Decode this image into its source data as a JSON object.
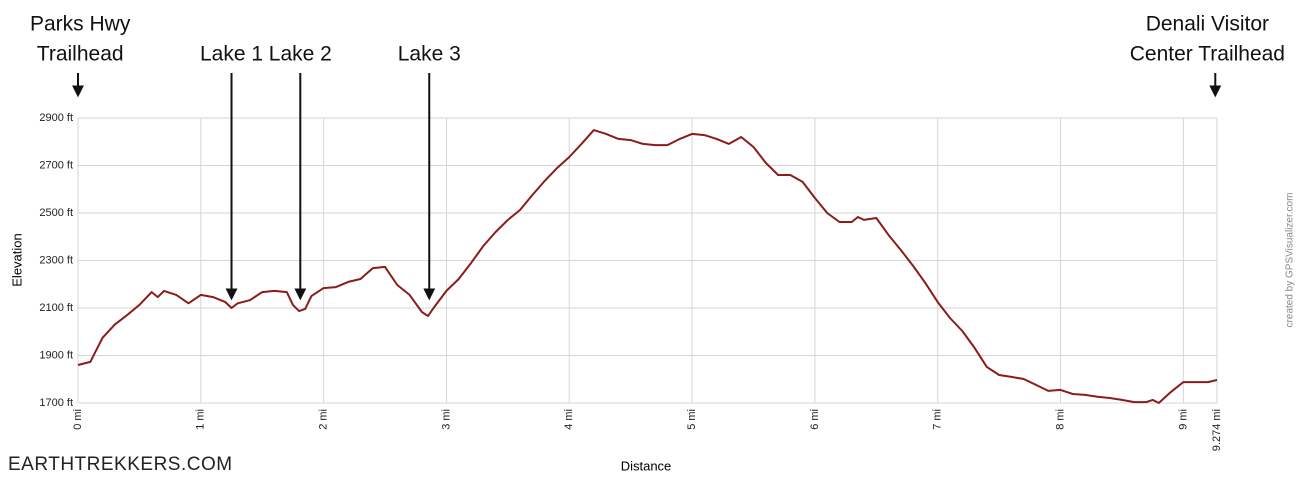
{
  "chart_data": {
    "type": "line",
    "y_label": "Elevation",
    "x_label": "Distance",
    "watermark": "EARTHTREKKERS.COM",
    "credit": "created by GPSVisualizer.com",
    "color": "#8b1c1c",
    "grid": true,
    "xlim": [
      0,
      9.274
    ],
    "ylim": [
      1700,
      2900
    ],
    "xticks": [
      {
        "value": 0,
        "label": "0 mi"
      },
      {
        "value": 1,
        "label": "1 mi"
      },
      {
        "value": 2,
        "label": "2 mi"
      },
      {
        "value": 3,
        "label": "3 mi"
      },
      {
        "value": 4,
        "label": "4 mi"
      },
      {
        "value": 5,
        "label": "5 mi"
      },
      {
        "value": 6,
        "label": "6 mi"
      },
      {
        "value": 7,
        "label": "7 mi"
      },
      {
        "value": 8,
        "label": "8 mi"
      },
      {
        "value": 9,
        "label": "9 mi"
      },
      {
        "value": 9.274,
        "label": "9.274 mi"
      }
    ],
    "yticks": [
      {
        "value": 1700,
        "label": "1700 ft"
      },
      {
        "value": 1900,
        "label": "1900 ft"
      },
      {
        "value": 2100,
        "label": "2100 ft"
      },
      {
        "value": 2300,
        "label": "2300 ft"
      },
      {
        "value": 2500,
        "label": "2500 ft"
      },
      {
        "value": 2700,
        "label": "2700 ft"
      },
      {
        "value": 2900,
        "label": "2900 ft"
      }
    ],
    "annotations": [
      {
        "text": [
          "Parks Hwy",
          "Trailhead"
        ],
        "x": 0
      },
      {
        "text": [
          "Lake 1"
        ],
        "x": 1.25
      },
      {
        "text": [
          "Lake 2"
        ],
        "x": 1.81
      },
      {
        "text": [
          "Lake 3"
        ],
        "x": 2.86
      },
      {
        "text": [
          "Denali Visitor",
          "Center Trailhead"
        ],
        "x": 9.26
      }
    ],
    "x": [
      0,
      0.1,
      0.2,
      0.3,
      0.4,
      0.5,
      0.6,
      0.65,
      0.7,
      0.8,
      0.9,
      1.0,
      1.1,
      1.2,
      1.25,
      1.3,
      1.4,
      1.5,
      1.6,
      1.7,
      1.75,
      1.8,
      1.85,
      1.9,
      2.0,
      2.1,
      2.2,
      2.3,
      2.4,
      2.5,
      2.6,
      2.7,
      2.8,
      2.85,
      2.9,
      3.0,
      3.1,
      3.2,
      3.3,
      3.4,
      3.5,
      3.6,
      3.7,
      3.8,
      3.9,
      4.0,
      4.1,
      4.2,
      4.3,
      4.4,
      4.5,
      4.6,
      4.7,
      4.8,
      4.9,
      5.0,
      5.1,
      5.2,
      5.3,
      5.4,
      5.5,
      5.6,
      5.7,
      5.8,
      5.9,
      6.0,
      6.1,
      6.2,
      6.3,
      6.35,
      6.4,
      6.5,
      6.6,
      6.7,
      6.8,
      6.9,
      7.0,
      7.1,
      7.2,
      7.3,
      7.4,
      7.5,
      7.6,
      7.7,
      7.8,
      7.9,
      8.0,
      8.1,
      8.2,
      8.3,
      8.4,
      8.5,
      8.6,
      8.7,
      8.75,
      8.8,
      8.9,
      9.0,
      9.1,
      9.2,
      9.274
    ],
    "values": [
      1860,
      1873,
      1975,
      2030,
      2070,
      2113,
      2167,
      2146,
      2172,
      2155,
      2120,
      2155,
      2146,
      2125,
      2100,
      2120,
      2133,
      2167,
      2172,
      2167,
      2113,
      2087,
      2096,
      2150,
      2184,
      2188,
      2210,
      2222,
      2268,
      2273,
      2197,
      2155,
      2083,
      2066,
      2104,
      2172,
      2222,
      2289,
      2361,
      2420,
      2471,
      2513,
      2576,
      2635,
      2689,
      2736,
      2791,
      2849,
      2833,
      2812,
      2807,
      2791,
      2786,
      2786,
      2812,
      2833,
      2828,
      2812,
      2791,
      2820,
      2778,
      2711,
      2660,
      2660,
      2631,
      2563,
      2500,
      2462,
      2462,
      2483,
      2471,
      2479,
      2407,
      2344,
      2277,
      2205,
      2125,
      2058,
      2003,
      1932,
      1852,
      1818,
      1810,
      1801,
      1776,
      1751,
      1755,
      1738,
      1734,
      1726,
      1721,
      1713,
      1704,
      1704,
      1713,
      1700,
      1747,
      1788,
      1788,
      1788,
      1797
    ]
  }
}
